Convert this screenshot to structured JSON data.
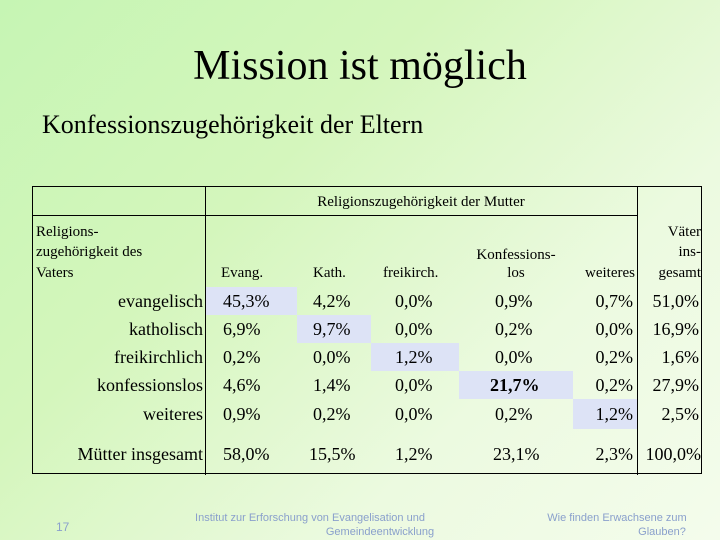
{
  "title": "Mission ist möglich",
  "subtitle": "Konfessionszugehörigkeit der Eltern",
  "table": {
    "mother_header": "Religionszugehörigkeit der Mutter",
    "father_header": [
      "Religions-",
      "zugehörigkeit des",
      "Vaters"
    ],
    "columns": {
      "evang": "Evang.",
      "kath": "Kath.",
      "frei": "freikirch.",
      "konf_line1": "Konfessions-",
      "konf_line2": "los",
      "weiteres": "weiteres",
      "vaeter_line1": "Väter",
      "vaeter_line2": "ins-",
      "vaeter_line3": "gesamt"
    },
    "rows": [
      {
        "label": "evangelisch",
        "values": [
          "45,3%",
          "4,2%",
          "0,0%",
          "0,9%",
          "0,7%",
          "51,0%"
        ]
      },
      {
        "label": "katholisch",
        "values": [
          "6,9%",
          "9,7%",
          "0,0%",
          "0,2%",
          "0,0%",
          "16,9%"
        ]
      },
      {
        "label": "freikirchlich",
        "values": [
          "0,2%",
          "0,0%",
          "1,2%",
          "0,0%",
          "0,2%",
          "1,6%"
        ]
      },
      {
        "label": "konfessionslos",
        "values": [
          "4,6%",
          "1,4%",
          "0,0%",
          "21,7%",
          "0,2%",
          "27,9%"
        ]
      },
      {
        "label": "weiteres",
        "values": [
          "0,9%",
          "0,2%",
          "0,0%",
          "0,2%",
          "1,2%",
          "2,5%"
        ]
      }
    ],
    "total_row": {
      "label": "Mütter insgesamt",
      "values": [
        "58,0%",
        "15,5%",
        "1,2%",
        "23,1%",
        "2,3%",
        "100,0%"
      ]
    }
  },
  "footer": {
    "slide_number": "17",
    "institute_line1": "Institut zur Erforschung von Evangelisation und",
    "institute_line2": "Gemeindeentwicklung",
    "book_line1": "Wie finden Erwachsene zum",
    "book_line2": "Glauben?"
  }
}
